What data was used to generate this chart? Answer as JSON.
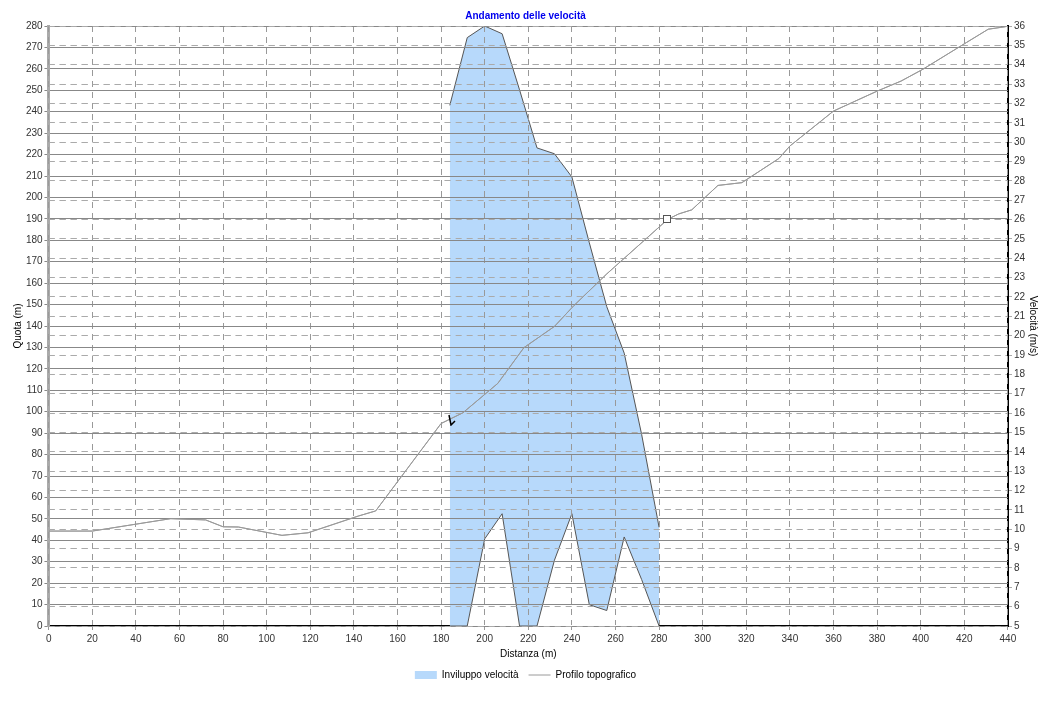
{
  "chart_data": {
    "type": "line",
    "title": "Andamento delle velocità",
    "xlabel": "Distanza (m)",
    "ylabel": "Quota (m)",
    "y2label": "Velocità (m/s)",
    "xlim": [
      0,
      440
    ],
    "xticks": [
      0,
      20,
      40,
      60,
      80,
      100,
      120,
      140,
      160,
      180,
      200,
      220,
      240,
      260,
      280,
      300,
      320,
      340,
      360,
      380,
      400,
      420,
      440
    ],
    "ylim": [
      0,
      280
    ],
    "yticks": [
      0,
      10,
      20,
      30,
      40,
      50,
      60,
      70,
      80,
      90,
      100,
      110,
      120,
      130,
      140,
      150,
      160,
      170,
      180,
      190,
      200,
      210,
      220,
      230,
      240,
      250,
      260,
      270,
      280
    ],
    "y2lim": [
      5,
      36
    ],
    "y2ticks": [
      5,
      6,
      7,
      8,
      9,
      10,
      11,
      12,
      13,
      14,
      15,
      16,
      17,
      18,
      19,
      20,
      21,
      22,
      23,
      24,
      25,
      26,
      27,
      28,
      29,
      30,
      31,
      32,
      33,
      34,
      35,
      36
    ],
    "grid": true,
    "legend": "bottom",
    "marker": "none",
    "series": [
      {
        "name": "Inviluppo velocità",
        "type": "area",
        "axis": "y2",
        "color": "#b7d9fb",
        "x": [
          184,
          192,
          200,
          208,
          216,
          224,
          232,
          240,
          248,
          256,
          264,
          272,
          280
        ],
        "values": [
          31.9,
          35.4,
          36,
          35.6,
          32.7,
          29.7,
          29.4,
          28.2,
          24.8,
          21.5,
          19.1,
          14.9,
          10.1
        ]
      },
      {
        "type": "area",
        "axis": "y2",
        "color": "#ffffff",
        "x": [
          184,
          192,
          200,
          208,
          216,
          224,
          232,
          240,
          248,
          256,
          264,
          272,
          280
        ],
        "values": [
          5,
          5,
          9.5,
          10.8,
          5,
          5,
          8.4,
          10.8,
          6.1,
          5.8,
          9.6,
          7.4,
          5
        ]
      },
      {
        "name": "Profilo topografico",
        "type": "line",
        "color": "#9a9a9a",
        "x": [
          0,
          20,
          56,
          72,
          80,
          87,
          107,
          119,
          142,
          150,
          180,
          184,
          190,
          206,
          218,
          232,
          241,
          256,
          284,
          289,
          295,
          307,
          318,
          335,
          340,
          360,
          380,
          391,
          401,
          421,
          431,
          439
        ],
        "values": [
          44.3,
          44.3,
          50.1,
          49.5,
          46.3,
          46.2,
          42.3,
          43.5,
          51.3,
          53.7,
          94.5,
          96.5,
          99.5,
          113.2,
          129.9,
          139.8,
          149.6,
          164.3,
          189.8,
          192.3,
          194.2,
          205.6,
          206.9,
          218.2,
          224,
          240.3,
          249.6,
          254.3,
          259.8,
          272.3,
          278.5,
          279.7
        ]
      }
    ]
  }
}
